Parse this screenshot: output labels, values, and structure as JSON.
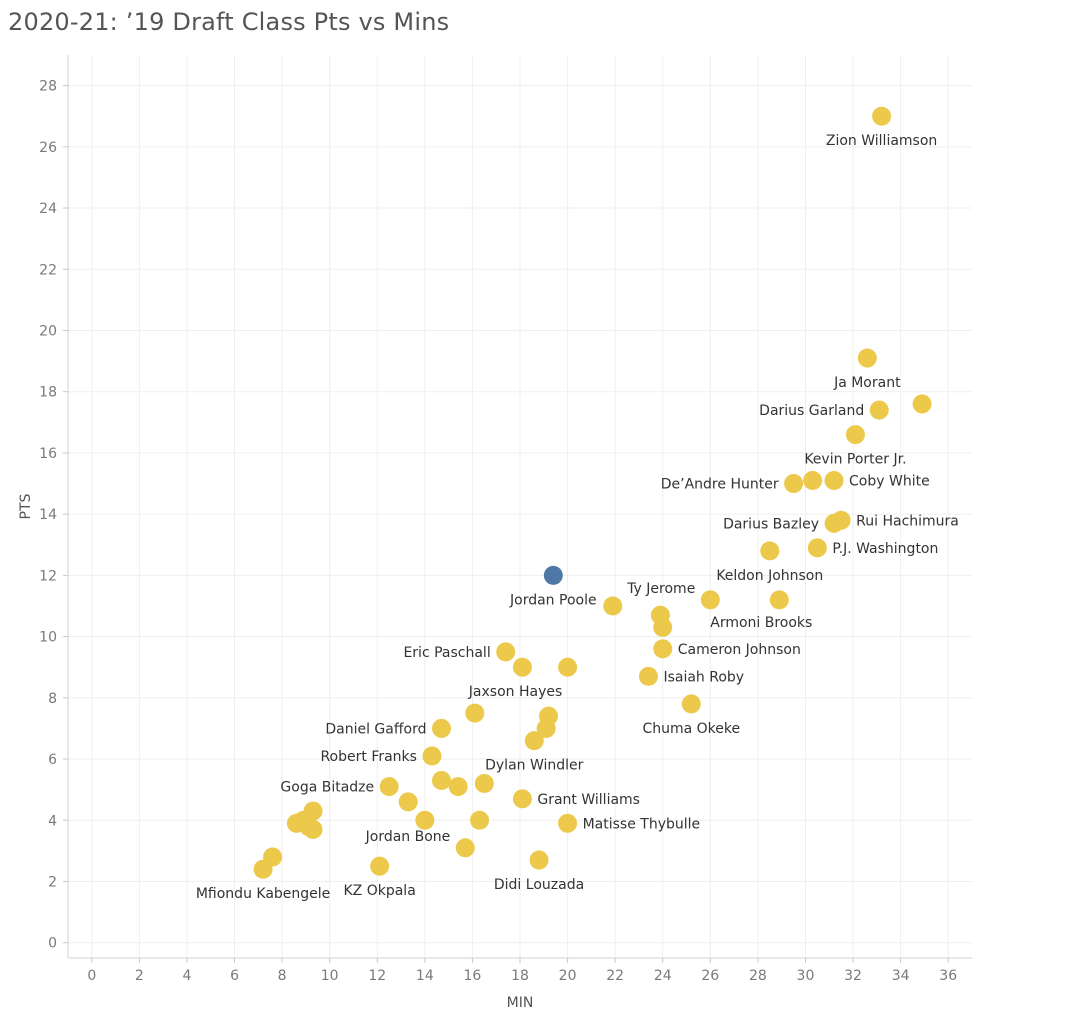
{
  "title": "2020-21: ’19 Draft Class Pts vs Mins",
  "chart_data": {
    "type": "scatter",
    "title": "2020-21: ’19 Draft Class Pts vs Mins",
    "xlabel": "MIN",
    "ylabel": "PTS",
    "xlim": [
      -1,
      37
    ],
    "ylim": [
      -0.5,
      29
    ],
    "x_ticks": [
      "0",
      "2",
      "4",
      "6",
      "8",
      "10",
      "12",
      "14",
      "16",
      "18",
      "20",
      "22",
      "24",
      "26",
      "28",
      "30",
      "32",
      "34",
      "36"
    ],
    "y_ticks": [
      "0",
      "2",
      "4",
      "6",
      "8",
      "10",
      "12",
      "14",
      "16",
      "18",
      "20",
      "22",
      "24",
      "26",
      "28"
    ],
    "grid": true,
    "colors": {
      "default": "#ECC94B",
      "highlight": "#4E79A7"
    },
    "points": [
      {
        "x": 33.2,
        "y": 27.0,
        "label": "Zion Williamson",
        "pos": "below"
      },
      {
        "x": 32.6,
        "y": 19.1,
        "label": "Ja Morant",
        "pos": "below"
      },
      {
        "x": 33.1,
        "y": 17.4,
        "label": "Darius Garland",
        "pos": "left"
      },
      {
        "x": 34.9,
        "y": 17.6,
        "label": "",
        "pos": "none"
      },
      {
        "x": 32.1,
        "y": 16.6,
        "label": "Kevin Porter Jr.",
        "pos": "below"
      },
      {
        "x": 29.5,
        "y": 15.0,
        "label": "De’Andre Hunter",
        "pos": "left"
      },
      {
        "x": 30.3,
        "y": 15.1,
        "label": "",
        "pos": "none"
      },
      {
        "x": 31.2,
        "y": 15.1,
        "label": "Coby White",
        "pos": "right"
      },
      {
        "x": 31.2,
        "y": 13.7,
        "label": "Darius Bazley",
        "pos": "left"
      },
      {
        "x": 31.5,
        "y": 13.8,
        "label": "Rui Hachimura",
        "pos": "right"
      },
      {
        "x": 30.5,
        "y": 12.9,
        "label": "P.J. Washington",
        "pos": "right"
      },
      {
        "x": 28.5,
        "y": 12.8,
        "label": "Keldon Johnson",
        "pos": "below"
      },
      {
        "x": 19.4,
        "y": 12.0,
        "label": "Jordan Poole",
        "pos": "below",
        "highlight": true
      },
      {
        "x": 21.9,
        "y": 11.0,
        "label": "",
        "pos": "none"
      },
      {
        "x": 26.0,
        "y": 11.2,
        "label": "Ty Jerome",
        "pos": "upleft"
      },
      {
        "x": 28.9,
        "y": 11.2,
        "label": "Armoni Brooks",
        "pos": "belowleft"
      },
      {
        "x": 23.9,
        "y": 10.7,
        "label": "",
        "pos": "none"
      },
      {
        "x": 24.0,
        "y": 10.3,
        "label": "",
        "pos": "none"
      },
      {
        "x": 24.0,
        "y": 9.6,
        "label": "Cameron Johnson",
        "pos": "right"
      },
      {
        "x": 17.4,
        "y": 9.5,
        "label": "Eric Paschall",
        "pos": "left"
      },
      {
        "x": 18.1,
        "y": 9.0,
        "label": "",
        "pos": "none"
      },
      {
        "x": 20.0,
        "y": 9.0,
        "label": "",
        "pos": "none"
      },
      {
        "x": 23.4,
        "y": 8.7,
        "label": "Isaiah Roby",
        "pos": "right"
      },
      {
        "x": 25.2,
        "y": 7.8,
        "label": "Chuma Okeke",
        "pos": "below"
      },
      {
        "x": 16.1,
        "y": 7.5,
        "label": "Jaxson Hayes",
        "pos": "upright"
      },
      {
        "x": 19.2,
        "y": 7.4,
        "label": "",
        "pos": "none"
      },
      {
        "x": 19.1,
        "y": 7.0,
        "label": "",
        "pos": "none"
      },
      {
        "x": 18.6,
        "y": 6.6,
        "label": "Dylan Windler",
        "pos": "below"
      },
      {
        "x": 14.7,
        "y": 7.0,
        "label": "Daniel Gafford",
        "pos": "left"
      },
      {
        "x": 14.3,
        "y": 6.1,
        "label": "Robert Franks",
        "pos": "left"
      },
      {
        "x": 14.7,
        "y": 5.3,
        "label": "",
        "pos": "none"
      },
      {
        "x": 15.4,
        "y": 5.1,
        "label": "",
        "pos": "none"
      },
      {
        "x": 16.5,
        "y": 5.2,
        "label": "",
        "pos": "none"
      },
      {
        "x": 12.5,
        "y": 5.1,
        "label": "Goga Bitadze",
        "pos": "left"
      },
      {
        "x": 13.3,
        "y": 4.6,
        "label": "",
        "pos": "none"
      },
      {
        "x": 18.1,
        "y": 4.7,
        "label": "Grant Williams",
        "pos": "right"
      },
      {
        "x": 14.0,
        "y": 4.0,
        "label": "",
        "pos": "none"
      },
      {
        "x": 16.3,
        "y": 4.0,
        "label": "",
        "pos": "none"
      },
      {
        "x": 20.0,
        "y": 3.9,
        "label": "Matisse Thybulle",
        "pos": "right"
      },
      {
        "x": 8.6,
        "y": 3.9,
        "label": "",
        "pos": "none"
      },
      {
        "x": 8.9,
        "y": 4.0,
        "label": "",
        "pos": "none"
      },
      {
        "x": 9.3,
        "y": 4.3,
        "label": "",
        "pos": "none"
      },
      {
        "x": 9.1,
        "y": 3.8,
        "label": "",
        "pos": "none"
      },
      {
        "x": 9.3,
        "y": 3.7,
        "label": "",
        "pos": "none"
      },
      {
        "x": 15.7,
        "y": 3.1,
        "label": "Jordan Bone",
        "pos": "upleft"
      },
      {
        "x": 18.8,
        "y": 2.7,
        "label": "Didi Louzada",
        "pos": "below"
      },
      {
        "x": 12.1,
        "y": 2.5,
        "label": "KZ Okpala",
        "pos": "below"
      },
      {
        "x": 7.6,
        "y": 2.8,
        "label": "",
        "pos": "none"
      },
      {
        "x": 7.2,
        "y": 2.4,
        "label": "Mfiondu Kabengele",
        "pos": "below"
      }
    ]
  }
}
